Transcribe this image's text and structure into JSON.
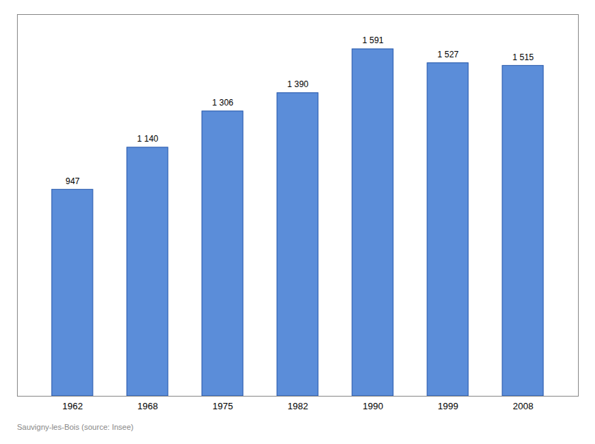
{
  "chart_data": {
    "type": "bar",
    "categories": [
      "1962",
      "1968",
      "1975",
      "1982",
      "1990",
      "1999",
      "2008"
    ],
    "values": [
      947,
      1140,
      1306,
      1390,
      1591,
      1527,
      1515
    ],
    "value_labels": [
      "947",
      "1 140",
      "1 306",
      "1 390",
      "1 591",
      "1 527",
      "1 515"
    ],
    "data_labels": true,
    "color": "#5b8dd9",
    "ylim": [
      0,
      1750
    ],
    "tick_labels": "x",
    "grid": false,
    "annotations": [
      "Sauvigny-les-Bois   (source: Insee)"
    ]
  }
}
